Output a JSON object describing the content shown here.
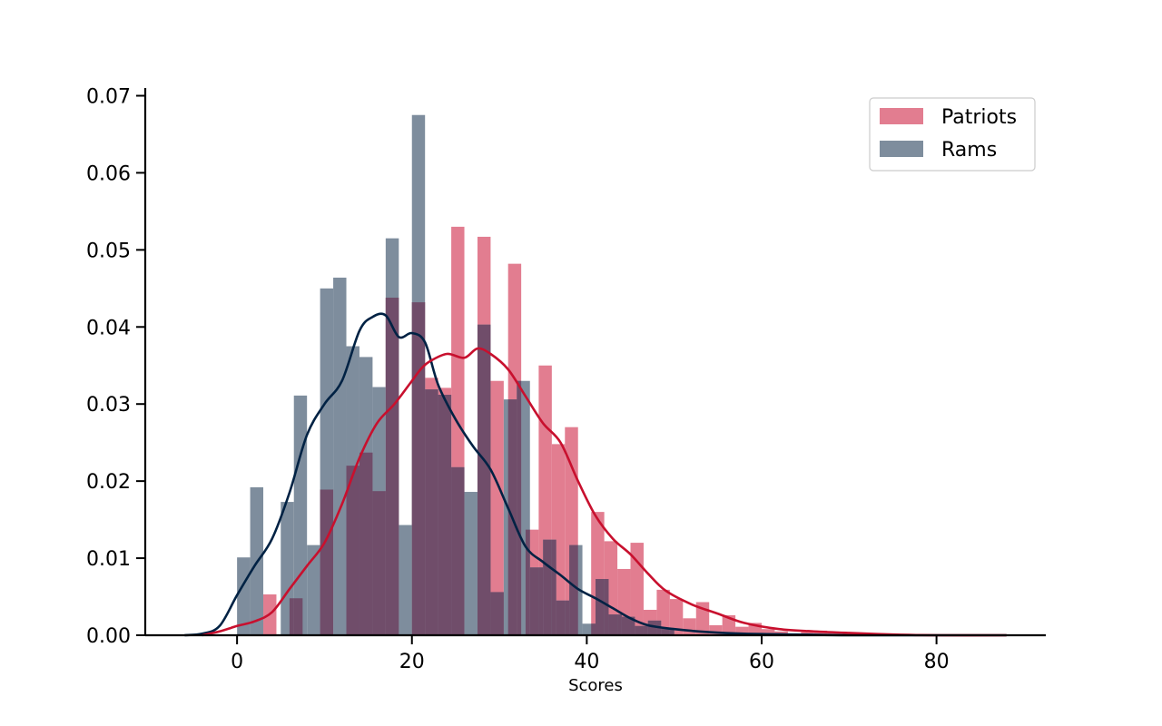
{
  "chart_data": {
    "type": "bar",
    "title": "",
    "xlabel": "Scores",
    "ylabel": "",
    "xlim": [
      -10.5,
      92.5
    ],
    "ylim": [
      0,
      0.071
    ],
    "x_ticks": [
      0,
      20,
      40,
      60,
      80
    ],
    "x_tick_labels": [
      "0",
      "20",
      "40",
      "60",
      "80"
    ],
    "y_ticks": [
      0.0,
      0.01,
      0.02,
      0.03,
      0.04,
      0.05,
      0.06,
      0.07
    ],
    "y_tick_labels": [
      "0.00",
      "0.01",
      "0.02",
      "0.03",
      "0.04",
      "0.05",
      "0.06",
      "0.07"
    ],
    "grid": false,
    "legend_position": "top-right",
    "overlap_color": "#704d6a",
    "series": [
      {
        "name": "Patriots",
        "hist_color": "#e27d90",
        "kde_color": "#c8102e",
        "bins": [
          {
            "x0": 3.0,
            "x1": 4.5,
            "value": 0.0053
          },
          {
            "x0": 6.0,
            "x1": 7.5,
            "value": 0.0048
          },
          {
            "x0": 9.5,
            "x1": 11.0,
            "value": 0.0189
          },
          {
            "x0": 12.5,
            "x1": 14.0,
            "value": 0.022
          },
          {
            "x0": 14.0,
            "x1": 15.5,
            "value": 0.0237
          },
          {
            "x0": 15.5,
            "x1": 17.0,
            "value": 0.0187
          },
          {
            "x0": 17.0,
            "x1": 18.5,
            "value": 0.0438
          },
          {
            "x0": 20.0,
            "x1": 21.5,
            "value": 0.0432
          },
          {
            "x0": 21.5,
            "x1": 23.0,
            "value": 0.0334
          },
          {
            "x0": 23.0,
            "x1": 24.5,
            "value": 0.0321
          },
          {
            "x0": 24.5,
            "x1": 26.0,
            "value": 0.053
          },
          {
            "x0": 27.5,
            "x1": 29.0,
            "value": 0.0517
          },
          {
            "x0": 29.0,
            "x1": 30.5,
            "value": 0.033
          },
          {
            "x0": 31.0,
            "x1": 32.5,
            "value": 0.0482
          },
          {
            "x0": 33.0,
            "x1": 34.5,
            "value": 0.0137
          },
          {
            "x0": 34.5,
            "x1": 36.0,
            "value": 0.035
          },
          {
            "x0": 36.0,
            "x1": 37.5,
            "value": 0.0248
          },
          {
            "x0": 37.5,
            "x1": 39.0,
            "value": 0.027
          },
          {
            "x0": 40.5,
            "x1": 42.0,
            "value": 0.016
          },
          {
            "x0": 42.0,
            "x1": 43.5,
            "value": 0.0122
          },
          {
            "x0": 43.5,
            "x1": 45.0,
            "value": 0.0086
          },
          {
            "x0": 45.0,
            "x1": 46.5,
            "value": 0.012
          },
          {
            "x0": 46.5,
            "x1": 48.0,
            "value": 0.0033
          },
          {
            "x0": 48.0,
            "x1": 49.5,
            "value": 0.0059
          },
          {
            "x0": 49.5,
            "x1": 51.0,
            "value": 0.0047
          },
          {
            "x0": 51.0,
            "x1": 52.5,
            "value": 0.0022
          },
          {
            "x0": 52.5,
            "x1": 54.0,
            "value": 0.0043
          },
          {
            "x0": 54.0,
            "x1": 55.5,
            "value": 0.0013
          },
          {
            "x0": 55.5,
            "x1": 57.0,
            "value": 0.0026
          },
          {
            "x0": 57.0,
            "x1": 58.5,
            "value": 0.0011
          },
          {
            "x0": 58.5,
            "x1": 60.0,
            "value": 0.0016
          },
          {
            "x0": 60.0,
            "x1": 61.5,
            "value": 0.0008
          },
          {
            "x0": 61.5,
            "x1": 63.0,
            "value": 0.0005
          },
          {
            "x0": 64.5,
            "x1": 66.0,
            "value": 0.0004
          },
          {
            "x0": 66.0,
            "x1": 67.5,
            "value": 0.0006
          },
          {
            "x0": 67.5,
            "x1": 69.0,
            "value": 0.0003
          },
          {
            "x0": 69.0,
            "x1": 70.5,
            "value": 0.0002
          },
          {
            "x0": 72.0,
            "x1": 73.5,
            "value": 0.0001
          }
        ],
        "kde_x": [
          -4,
          -2,
          0,
          2,
          4,
          6,
          8,
          10,
          12,
          14,
          16,
          18,
          20,
          21,
          22,
          24,
          26,
          27.5,
          29,
          31,
          33,
          35,
          37,
          39,
          41,
          43,
          45,
          47,
          49,
          52,
          55,
          58,
          62,
          66,
          70,
          75,
          80,
          88
        ],
        "kde_y": [
          0.0,
          0.0005,
          0.0012,
          0.0018,
          0.003,
          0.006,
          0.009,
          0.012,
          0.017,
          0.023,
          0.0275,
          0.03,
          0.033,
          0.0345,
          0.0355,
          0.0365,
          0.036,
          0.0372,
          0.0365,
          0.0345,
          0.031,
          0.0275,
          0.025,
          0.02,
          0.0155,
          0.0125,
          0.0105,
          0.008,
          0.0058,
          0.004,
          0.0028,
          0.0016,
          0.0008,
          0.0005,
          0.0003,
          0.0001,
          0.0,
          0.0
        ]
      },
      {
        "name": "Rams",
        "hist_color": "#7e8d9d",
        "kde_color": "#002244",
        "bins": [
          {
            "x0": 0.0,
            "x1": 1.5,
            "value": 0.0101
          },
          {
            "x0": 1.5,
            "x1": 3.0,
            "value": 0.0192
          },
          {
            "x0": 5.0,
            "x1": 6.5,
            "value": 0.0173
          },
          {
            "x0": 6.5,
            "x1": 8.0,
            "value": 0.0311
          },
          {
            "x0": 8.0,
            "x1": 9.5,
            "value": 0.0117
          },
          {
            "x0": 9.5,
            "x1": 11.0,
            "value": 0.045
          },
          {
            "x0": 11.0,
            "x1": 12.5,
            "value": 0.0464
          },
          {
            "x0": 12.5,
            "x1": 14.0,
            "value": 0.0375
          },
          {
            "x0": 14.0,
            "x1": 15.5,
            "value": 0.0361
          },
          {
            "x0": 15.5,
            "x1": 17.0,
            "value": 0.0322
          },
          {
            "x0": 17.0,
            "x1": 18.5,
            "value": 0.0515
          },
          {
            "x0": 18.5,
            "x1": 20.0,
            "value": 0.0143
          },
          {
            "x0": 20.0,
            "x1": 21.5,
            "value": 0.0675
          },
          {
            "x0": 21.5,
            "x1": 23.0,
            "value": 0.0319
          },
          {
            "x0": 23.0,
            "x1": 24.5,
            "value": 0.0312
          },
          {
            "x0": 24.5,
            "x1": 26.0,
            "value": 0.0218
          },
          {
            "x0": 26.0,
            "x1": 27.5,
            "value": 0.0186
          },
          {
            "x0": 27.5,
            "x1": 29.0,
            "value": 0.0403
          },
          {
            "x0": 29.0,
            "x1": 30.5,
            "value": 0.0056
          },
          {
            "x0": 30.5,
            "x1": 32.0,
            "value": 0.0306
          },
          {
            "x0": 32.0,
            "x1": 33.5,
            "value": 0.033
          },
          {
            "x0": 33.5,
            "x1": 35.0,
            "value": 0.0088
          },
          {
            "x0": 35.0,
            "x1": 36.5,
            "value": 0.0124
          },
          {
            "x0": 36.5,
            "x1": 38.0,
            "value": 0.0045
          },
          {
            "x0": 38.0,
            "x1": 39.5,
            "value": 0.0117
          },
          {
            "x0": 39.5,
            "x1": 41.0,
            "value": 0.0015
          },
          {
            "x0": 41.0,
            "x1": 42.5,
            "value": 0.0073
          },
          {
            "x0": 42.5,
            "x1": 44.0,
            "value": 0.0027
          },
          {
            "x0": 44.0,
            "x1": 45.5,
            "value": 0.0024
          },
          {
            "x0": 45.5,
            "x1": 47.0,
            "value": 0.0012
          },
          {
            "x0": 47.0,
            "x1": 48.5,
            "value": 0.0019
          },
          {
            "x0": 48.5,
            "x1": 50.0,
            "value": 0.0009
          }
        ],
        "kde_x": [
          -6,
          -4,
          -2,
          0,
          2,
          4,
          6,
          8,
          10,
          12,
          14,
          15.5,
          17,
          18.5,
          20,
          21.5,
          23,
          25,
          27,
          29,
          31,
          33,
          35,
          37,
          39,
          41,
          43,
          45,
          47,
          50,
          54,
          58,
          64,
          70,
          78,
          88
        ],
        "kde_y": [
          0.0,
          0.0002,
          0.0012,
          0.0052,
          0.009,
          0.0125,
          0.0185,
          0.026,
          0.03,
          0.033,
          0.0395,
          0.0413,
          0.0415,
          0.0387,
          0.0392,
          0.038,
          0.0325,
          0.028,
          0.0245,
          0.0215,
          0.0165,
          0.0115,
          0.0095,
          0.0078,
          0.006,
          0.0048,
          0.0035,
          0.0022,
          0.0013,
          0.0008,
          0.0004,
          0.0002,
          0.0001,
          0.0,
          0.0,
          0.0
        ]
      }
    ]
  }
}
